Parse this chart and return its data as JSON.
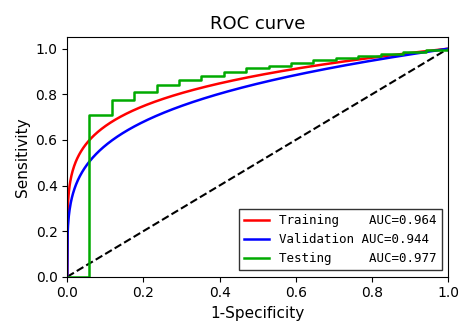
{
  "title": "ROC curve",
  "xlabel": "1-Specificity",
  "ylabel": "Sensitivity",
  "xlim": [
    0.0,
    1.0
  ],
  "ylim": [
    0.0,
    1.05
  ],
  "xticks": [
    0.0,
    0.2,
    0.4,
    0.6,
    0.8,
    1.0
  ],
  "yticks": [
    0.0,
    0.2,
    0.4,
    0.6,
    0.8,
    1.0
  ],
  "diagonal_color": "black",
  "diagonal_linestyle": "--",
  "diagonal_linewidth": 1.5,
  "curves": [
    {
      "label": "Training    AUC=0.964",
      "color": "#ff0000",
      "shape_param": 0.18,
      "stepwise": false
    },
    {
      "label": "Validation AUC=0.944",
      "color": "#0000ff",
      "shape_param": 0.24,
      "stepwise": false
    },
    {
      "label": "Testing     AUC=0.977",
      "color": "#00aa00",
      "shape_param": 0.12,
      "stepwise": true,
      "n_steps": 18
    }
  ],
  "legend_loc": "lower right",
  "legend_fontsize": 9,
  "title_fontsize": 13,
  "axis_fontsize": 11,
  "tick_fontsize": 10,
  "linewidth": 1.8,
  "background_color": "#ffffff"
}
